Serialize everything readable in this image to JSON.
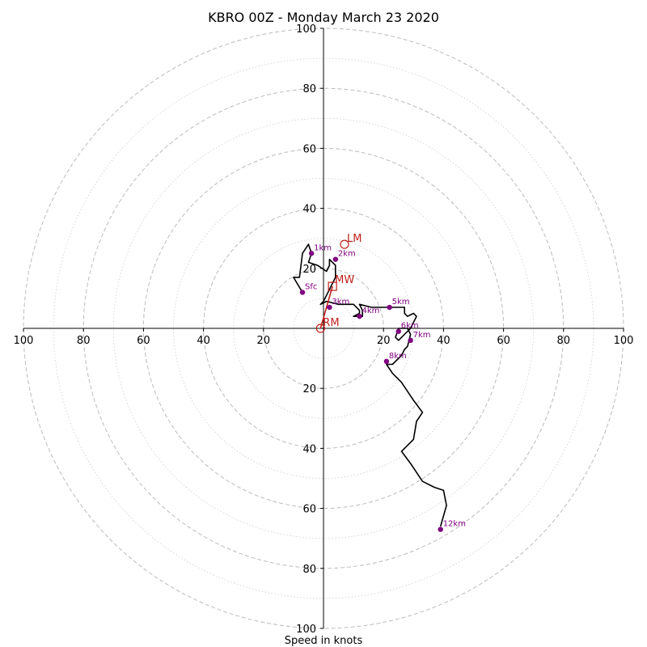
{
  "chart_data": {
    "type": "hodograph",
    "title": "KBRO 00Z - Monday March 23 2020",
    "xlabel": "Speed in knots",
    "xlim": [
      -100,
      100
    ],
    "ylim": [
      -100,
      100
    ],
    "ring_interval_major": 20,
    "ring_interval_minor": 10,
    "tick_values": [
      100,
      80,
      60,
      40,
      20,
      0,
      20,
      40,
      60,
      80,
      100
    ],
    "colors": {
      "trace": "#000000",
      "height_markers": "#800080",
      "motion": "#c0211c",
      "rings": "#bbbbbb"
    },
    "trace": [
      [
        -7,
        12
      ],
      [
        -10,
        17
      ],
      [
        -8,
        17
      ],
      [
        -7,
        25
      ],
      [
        -5,
        28
      ],
      [
        -4,
        25
      ],
      [
        -5,
        22
      ],
      [
        -2,
        21
      ],
      [
        1,
        19
      ],
      [
        2,
        21
      ],
      [
        2,
        23
      ],
      [
        4,
        21
      ],
      [
        4,
        17
      ],
      [
        3,
        15
      ],
      [
        1,
        11
      ],
      [
        0,
        9
      ],
      [
        -1,
        8
      ],
      [
        1,
        9
      ],
      [
        5,
        8
      ],
      [
        9,
        8
      ],
      [
        10,
        8
      ],
      [
        12,
        6
      ],
      [
        12,
        5
      ],
      [
        10,
        4
      ],
      [
        11,
        4
      ],
      [
        13,
        4
      ],
      [
        13,
        6
      ],
      [
        12,
        8
      ],
      [
        16,
        7
      ],
      [
        22,
        7
      ],
      [
        27,
        7
      ],
      [
        27,
        5
      ],
      [
        28,
        4
      ],
      [
        30,
        5
      ],
      [
        31,
        4
      ],
      [
        29,
        0
      ],
      [
        28,
        -1
      ],
      [
        25,
        -4
      ],
      [
        24,
        -3
      ],
      [
        25,
        0
      ],
      [
        28,
        0
      ],
      [
        29,
        -2
      ],
      [
        28,
        -6
      ],
      [
        27,
        -7
      ],
      [
        26,
        -9
      ],
      [
        23,
        -12
      ],
      [
        21,
        -12
      ],
      [
        23,
        -15
      ],
      [
        26,
        -18
      ],
      [
        30,
        -24
      ],
      [
        33,
        -28
      ],
      [
        31,
        -31
      ],
      [
        30,
        -37
      ],
      [
        26,
        -41
      ],
      [
        29,
        -45
      ],
      [
        33,
        -51
      ],
      [
        37,
        -53
      ],
      [
        40,
        -54
      ],
      [
        41,
        -59
      ],
      [
        39,
        -66
      ]
    ],
    "height_markers": [
      {
        "label": "Sfc",
        "u": -7,
        "v": 12
      },
      {
        "label": "1km",
        "u": -4,
        "v": 25
      },
      {
        "label": "2km",
        "u": 4,
        "v": 23
      },
      {
        "label": "3km",
        "u": 2,
        "v": 7
      },
      {
        "label": "4km",
        "u": 12,
        "v": 4
      },
      {
        "label": "5km",
        "u": 22,
        "v": 7
      },
      {
        "label": "6km",
        "u": 25,
        "v": -1
      },
      {
        "label": "7km",
        "u": 29,
        "v": -4
      },
      {
        "label": "8km",
        "u": 21,
        "v": -11
      },
      {
        "label": "12km",
        "u": 39,
        "v": -67
      }
    ],
    "storm_motion": {
      "RM": {
        "label": "RM",
        "u": -1,
        "v": 0
      },
      "LM": {
        "label": "LM",
        "u": 7,
        "v": 28
      },
      "MW": {
        "label": "MW",
        "u": 3,
        "v": 14
      }
    }
  }
}
